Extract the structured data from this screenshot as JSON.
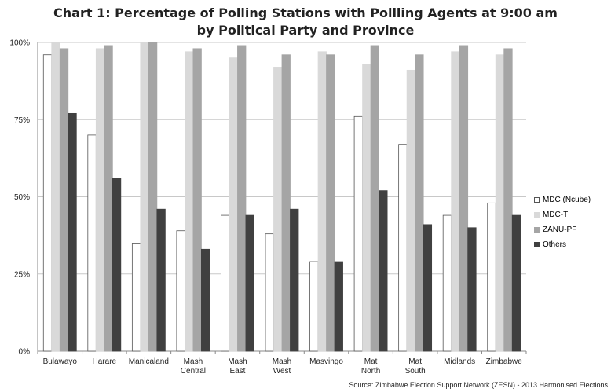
{
  "chart_data": {
    "type": "bar",
    "title": [
      "Chart 1: Percentage of Polling Stations with Pollling Agents  at 9:00 am",
      "by Political Party and Province"
    ],
    "categories": [
      [
        "Bulawayo"
      ],
      [
        "Harare"
      ],
      [
        "Manicaland"
      ],
      [
        "Mash",
        "Central"
      ],
      [
        "Mash",
        "East"
      ],
      [
        "Mash",
        "West"
      ],
      [
        "Masvingo"
      ],
      [
        "Mat",
        "North"
      ],
      [
        "Mat",
        "South"
      ],
      [
        "Midlands"
      ],
      [
        "Zimbabwe"
      ]
    ],
    "series": [
      {
        "name": "MDC (Ncube)",
        "color": "#ffffff",
        "stroke": "#555555",
        "values": [
          96,
          70,
          35,
          39,
          44,
          38,
          29,
          76,
          67,
          44,
          48
        ]
      },
      {
        "name": "MDC-T",
        "color": "#d9d9d9",
        "stroke": "#d9d9d9",
        "values": [
          100,
          98,
          100,
          97,
          95,
          92,
          97,
          93,
          91,
          97,
          96
        ]
      },
      {
        "name": "ZANU-PF",
        "color": "#a5a5a5",
        "stroke": "#a5a5a5",
        "values": [
          98,
          99,
          100,
          98,
          99,
          96,
          96,
          99,
          96,
          99,
          98
        ]
      },
      {
        "name": "Others",
        "color": "#404040",
        "stroke": "#404040",
        "values": [
          77,
          56,
          46,
          33,
          44,
          46,
          29,
          52,
          41,
          40,
          44
        ]
      }
    ],
    "yticks": [
      "0%",
      "25%",
      "50%",
      "75%",
      "100%"
    ],
    "ylim": [
      0,
      100
    ],
    "grid": true,
    "legend_position": "right"
  },
  "source": "Source: Zimbabwe Election Support Network (ZESN) - 2013 Harmonised Elections"
}
